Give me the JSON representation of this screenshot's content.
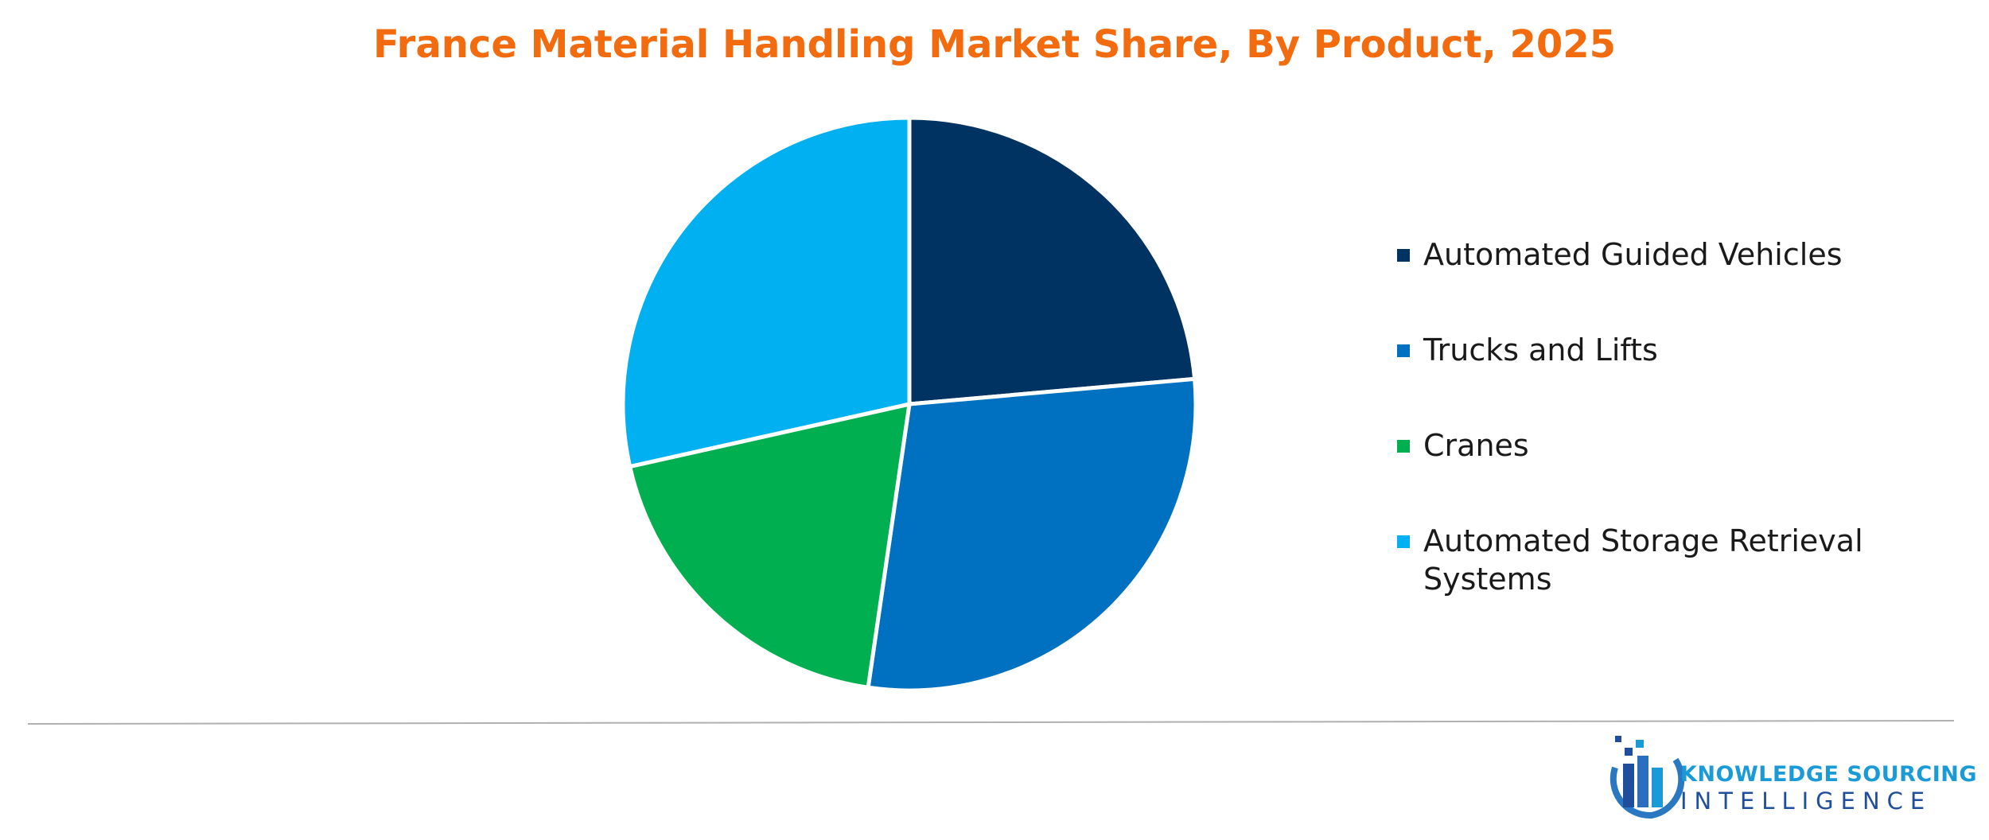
{
  "chart_data": {
    "type": "pie",
    "title": "France Material Handling Market Share, By Product, 2025",
    "categories": [
      "Automated Guided Vehicles",
      "Trucks and Lifts",
      "Cranes",
      "Automated Storage Retrieval Systems"
    ],
    "values": [
      23.6,
      28.7,
      19.2,
      28.5
    ],
    "colors": [
      "#003262",
      "#0070c0",
      "#00b050",
      "#00b0f0"
    ],
    "legend": "right"
  },
  "footer": {
    "logo_line1": "KNOWLEDGE SOURCING",
    "logo_line2": "INTELLIGENCE"
  }
}
